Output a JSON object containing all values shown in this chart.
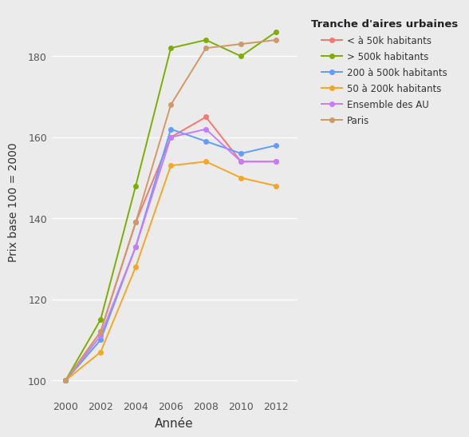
{
  "years": [
    2000,
    2002,
    2004,
    2006,
    2008,
    2010,
    2012
  ],
  "series": {
    "< à 50k habitants": {
      "values": [
        100,
        112,
        139,
        160,
        165,
        154,
        154
      ],
      "color": "#F8766D",
      "marker": "o"
    },
    "> 500k habitants": {
      "values": [
        100,
        115,
        148,
        182,
        184,
        180,
        186
      ],
      "color": "#7CAE00",
      "marker": "o"
    },
    "200 à 500k habitants": {
      "values": [
        100,
        110,
        133,
        162,
        159,
        156,
        158
      ],
      "color": "#619CFF",
      "marker": "o"
    },
    "50 à 200k habitants": {
      "values": [
        100,
        107,
        128,
        153,
        154,
        150,
        148
      ],
      "color": "#F5A623",
      "marker": "o"
    },
    "Ensemble des AU": {
      "values": [
        100,
        111,
        133,
        160,
        162,
        154,
        154
      ],
      "color": "#C77CFF",
      "marker": "o"
    },
    "Paris": {
      "values": [
        100,
        112,
        139,
        168,
        182,
        183,
        184
      ],
      "color": "#CD9966",
      "marker": "o"
    }
  },
  "legend_order": [
    "< à 50k habitants",
    "> 500k habitants",
    "200 à 500k habitants",
    "50 à 200k habitants",
    "Ensemble des AU",
    "Paris"
  ],
  "title": "Tranche d'aires urbaines",
  "xlabel": "Année",
  "ylabel": "Prix base 100 = 2000",
  "ylim": [
    96,
    192
  ],
  "xlim": [
    1999.2,
    2013.2
  ],
  "yticks": [
    100,
    120,
    140,
    160,
    180
  ],
  "xticks": [
    2000,
    2002,
    2004,
    2006,
    2008,
    2010,
    2012
  ],
  "bg_color": "#EBEBEB",
  "panel_color": "#EBEBEB",
  "grid_color": "#FFFFFF",
  "linewidth": 1.4,
  "markersize": 4.5
}
